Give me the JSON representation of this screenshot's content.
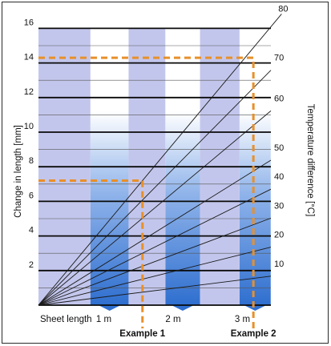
{
  "colors": {
    "band_light": "#c3c6ec",
    "band_dark": "#2f6fcf",
    "band_pale": "#ffffff",
    "grid_major": "#0a0a0a",
    "grid_minor": "#555555",
    "fan_line": "#1a1a1a",
    "example_line": "#e8902a"
  },
  "chart_data": {
    "type": "line",
    "title": "",
    "ylabel": "Change in length [mm]",
    "y2label": "Temperature difference [°C]",
    "xlabel": "Sheet length",
    "ylim": [
      0,
      16
    ],
    "xlim": [
      0,
      3.6
    ],
    "y_ticks": [
      2,
      4,
      6,
      8,
      10,
      12,
      14,
      16
    ],
    "x_ticks": [
      {
        "value": 1,
        "label": "1 m"
      },
      {
        "value": 2,
        "label": "2 m"
      },
      {
        "value": 3,
        "label": "3 m"
      }
    ],
    "grid": true,
    "series": [
      {
        "name": "10",
        "slope_mm_per_m": 0.5
      },
      {
        "name": "20",
        "slope_mm_per_m": 1.0
      },
      {
        "name": "30",
        "slope_mm_per_m": 1.5
      },
      {
        "name": "40",
        "slope_mm_per_m": 2.0
      },
      {
        "name": "50",
        "slope_mm_per_m": 2.5
      },
      {
        "name": "60",
        "slope_mm_per_m": 3.35
      },
      {
        "name": "70",
        "slope_mm_per_m": 4.05
      },
      {
        "name": "80",
        "slope_mm_per_m": 4.8
      }
    ],
    "annotations": [
      {
        "label": "Example 1",
        "x": 1.5,
        "y": 7.2
      },
      {
        "label": "Example 2",
        "x": 3.1,
        "y": 14.3
      }
    ]
  }
}
